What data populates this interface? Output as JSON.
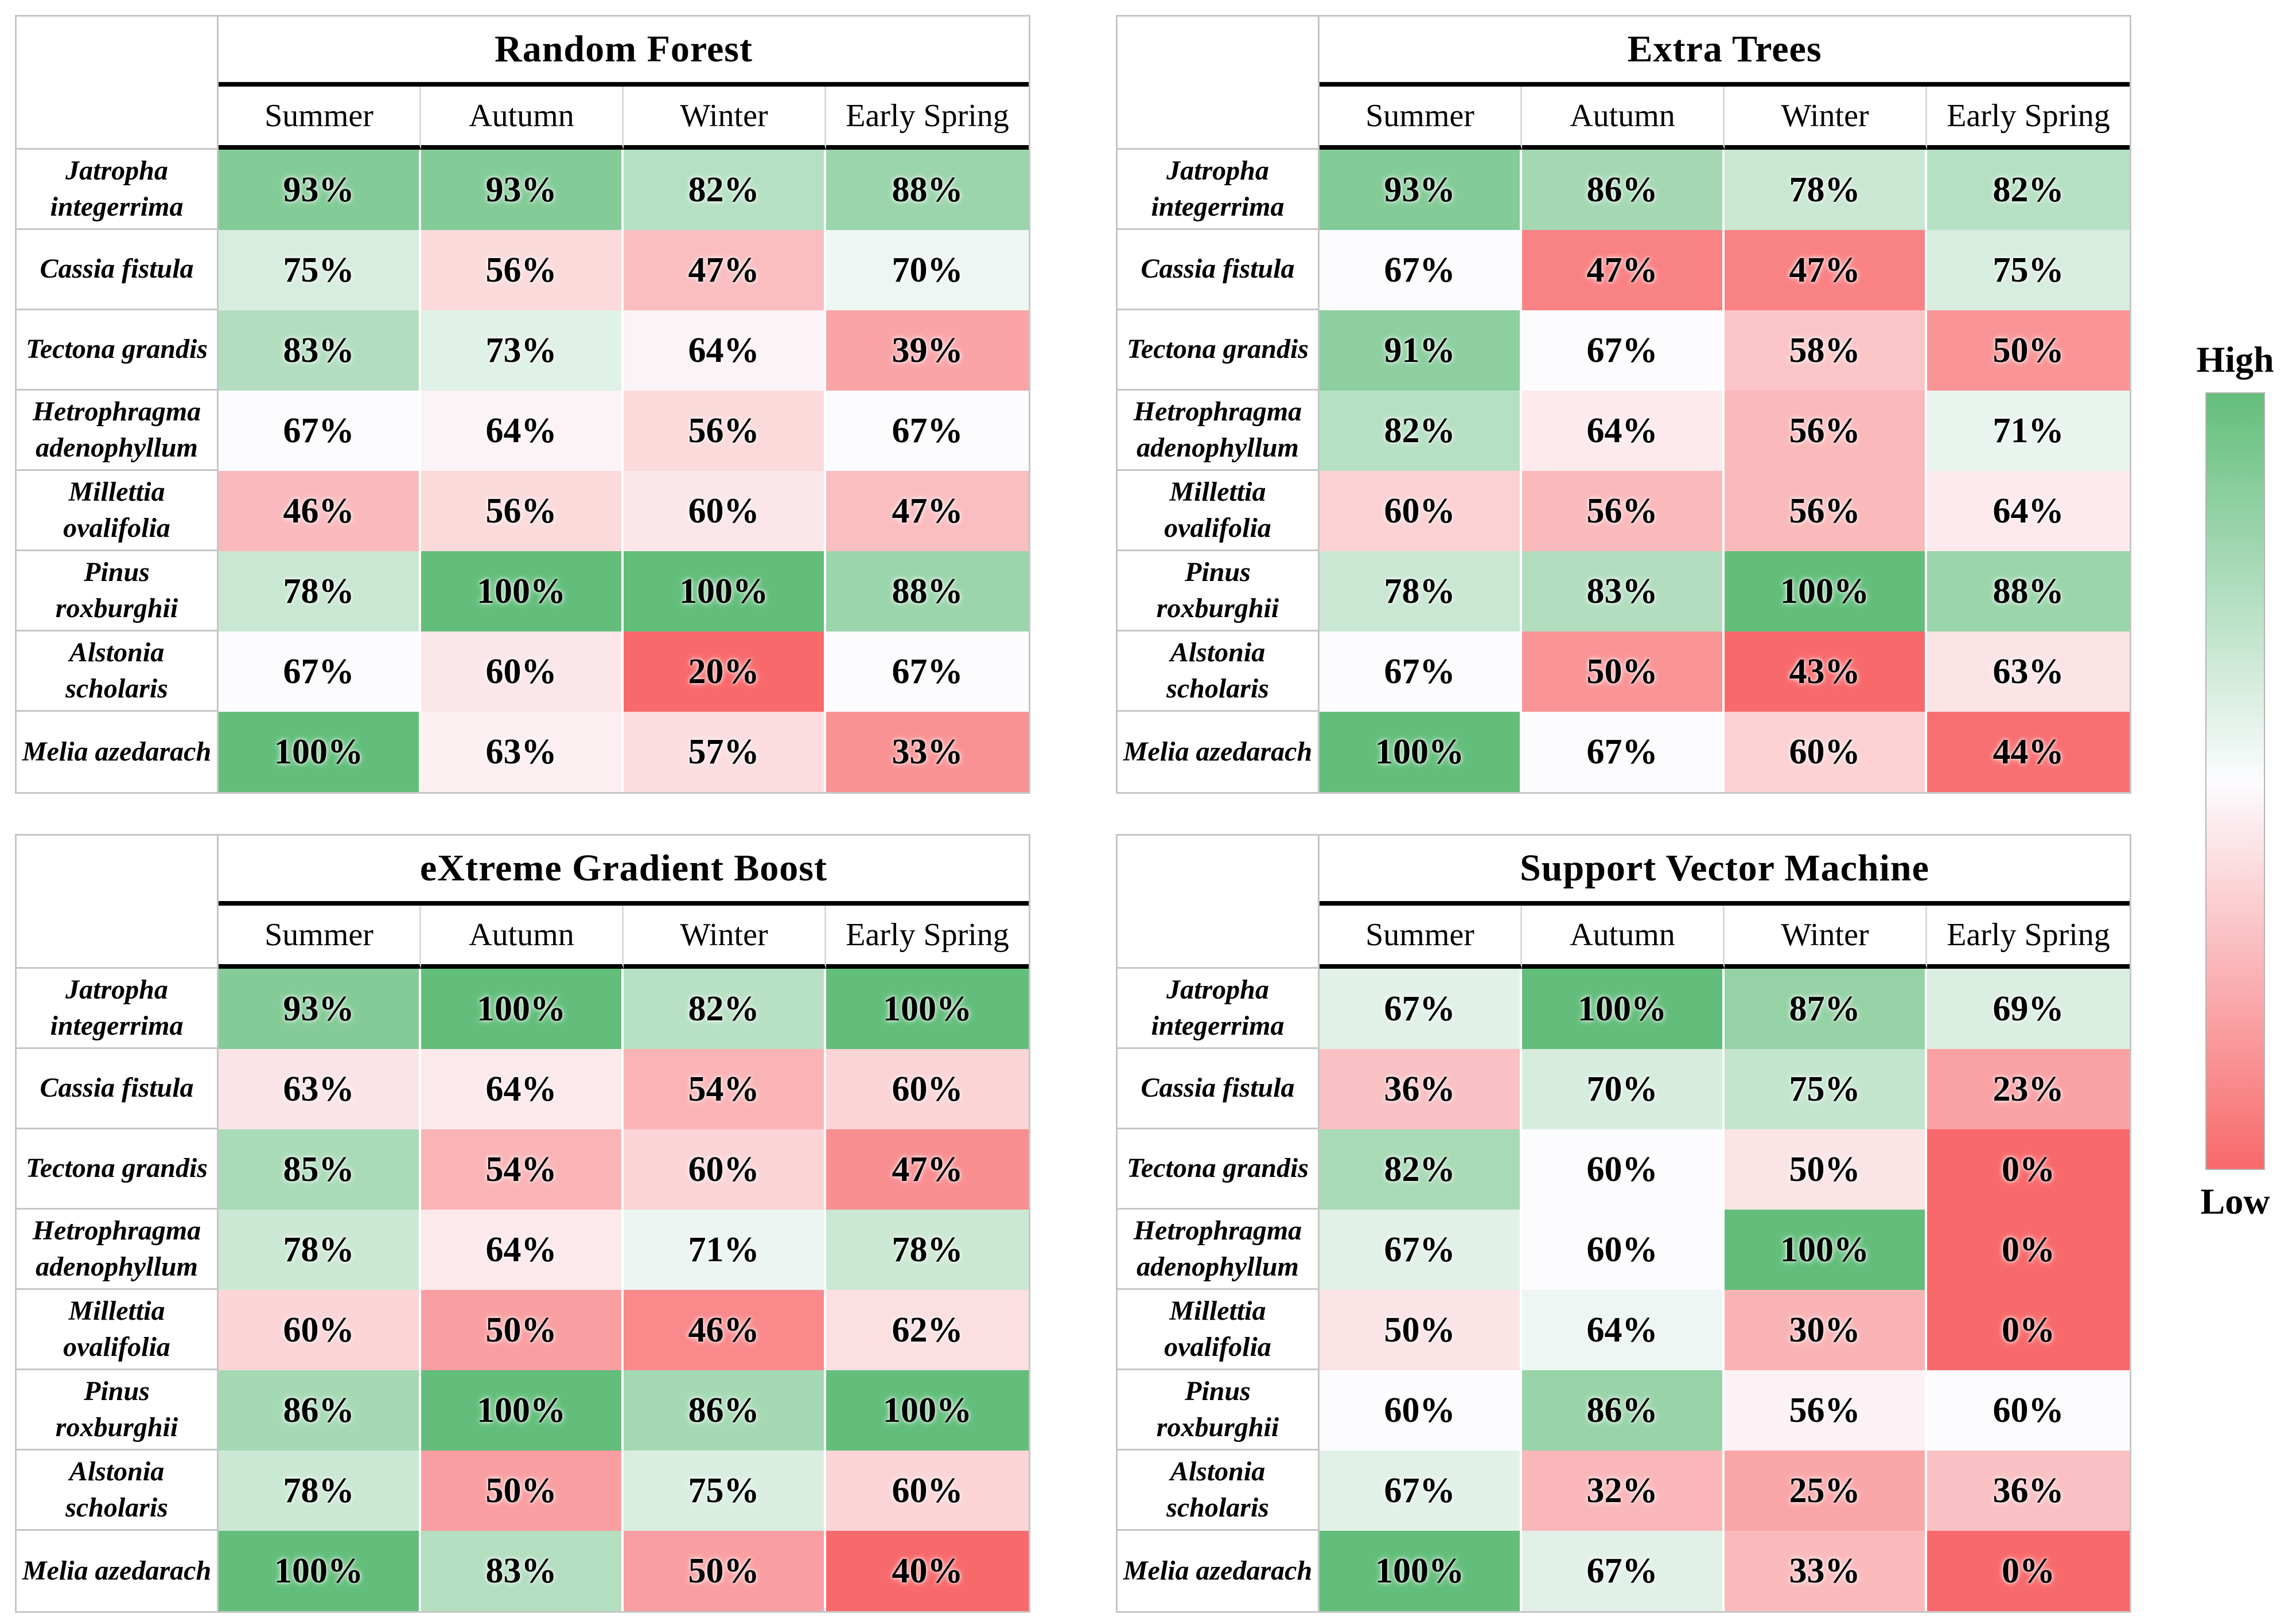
{
  "figure": {
    "background": "#ffffff",
    "colormap": {
      "low_color": "#F8696B",
      "mid_color": "#FCFCFF",
      "high_color": "#63BE7B",
      "scaling": "per-table 3-color scale: minimum maps to red, median to white, maximum to green"
    }
  },
  "legend": {
    "high_label": "High",
    "low_label": "Low"
  },
  "seasons": [
    "Summer",
    "Autumn",
    "Winter",
    "Early Spring"
  ],
  "species": [
    "Jatropha integerrima",
    "Cassia fistula",
    "Tectona grandis",
    "Hetrophragma adenophyllum",
    "Millettia ovalifolia",
    "Pinus roxburghii",
    "Alstonia scholaris",
    "Melia azedarach"
  ],
  "chart_data": [
    {
      "type": "heatmap",
      "title": "Random Forest",
      "x_categories": [
        "Summer",
        "Autumn",
        "Winter",
        "Early Spring"
      ],
      "y_categories": [
        "Jatropha integerrima",
        "Cassia fistula",
        "Tectona grandis",
        "Hetrophragma adenophyllum",
        "Millettia ovalifolia",
        "Pinus roxburghii",
        "Alstonia scholaris",
        "Melia azedarach"
      ],
      "values": [
        [
          93,
          93,
          82,
          88
        ],
        [
          75,
          56,
          47,
          70
        ],
        [
          83,
          73,
          64,
          39
        ],
        [
          67,
          64,
          56,
          67
        ],
        [
          46,
          56,
          60,
          47
        ],
        [
          78,
          100,
          100,
          88
        ],
        [
          67,
          60,
          20,
          67
        ],
        [
          100,
          63,
          57,
          33
        ]
      ],
      "value_format": "percent",
      "legend_high": "High",
      "legend_low": "Low"
    },
    {
      "type": "heatmap",
      "title": "Extra Trees",
      "x_categories": [
        "Summer",
        "Autumn",
        "Winter",
        "Early Spring"
      ],
      "y_categories": [
        "Jatropha integerrima",
        "Cassia fistula",
        "Tectona grandis",
        "Hetrophragma adenophyllum",
        "Millettia ovalifolia",
        "Pinus roxburghii",
        "Alstonia scholaris",
        "Melia azedarach"
      ],
      "values": [
        [
          93,
          86,
          78,
          82
        ],
        [
          67,
          47,
          47,
          75
        ],
        [
          91,
          67,
          58,
          50
        ],
        [
          82,
          64,
          56,
          71
        ],
        [
          60,
          56,
          56,
          64
        ],
        [
          78,
          83,
          100,
          88
        ],
        [
          67,
          50,
          43,
          63
        ],
        [
          100,
          67,
          60,
          44
        ]
      ],
      "value_format": "percent",
      "legend_high": "High",
      "legend_low": "Low"
    },
    {
      "type": "heatmap",
      "title": "eXtreme Gradient Boost",
      "x_categories": [
        "Summer",
        "Autumn",
        "Winter",
        "Early Spring"
      ],
      "y_categories": [
        "Jatropha integerrima",
        "Cassia fistula",
        "Tectona grandis",
        "Hetrophragma adenophyllum",
        "Millettia ovalifolia",
        "Pinus roxburghii",
        "Alstonia scholaris",
        "Melia azedarach"
      ],
      "values": [
        [
          93,
          100,
          82,
          100
        ],
        [
          63,
          64,
          54,
          60
        ],
        [
          85,
          54,
          60,
          47
        ],
        [
          78,
          64,
          71,
          78
        ],
        [
          60,
          50,
          46,
          62
        ],
        [
          86,
          100,
          86,
          100
        ],
        [
          78,
          50,
          75,
          60
        ],
        [
          100,
          83,
          50,
          40
        ]
      ],
      "value_format": "percent",
      "legend_high": "High",
      "legend_low": "Low"
    },
    {
      "type": "heatmap",
      "title": "Support Vector Machine",
      "x_categories": [
        "Summer",
        "Autumn",
        "Winter",
        "Early Spring"
      ],
      "y_categories": [
        "Jatropha integerrima",
        "Cassia fistula",
        "Tectona grandis",
        "Hetrophragma adenophyllum",
        "Millettia ovalifolia",
        "Pinus roxburghii",
        "Alstonia scholaris",
        "Melia azedarach"
      ],
      "values": [
        [
          67,
          100,
          87,
          69
        ],
        [
          36,
          70,
          75,
          23
        ],
        [
          82,
          60,
          50,
          0
        ],
        [
          67,
          60,
          100,
          0
        ],
        [
          50,
          64,
          30,
          0
        ],
        [
          60,
          86,
          56,
          60
        ],
        [
          67,
          32,
          25,
          36
        ],
        [
          100,
          67,
          33,
          0
        ]
      ],
      "value_format": "percent",
      "legend_high": "High",
      "legend_low": "Low"
    }
  ]
}
